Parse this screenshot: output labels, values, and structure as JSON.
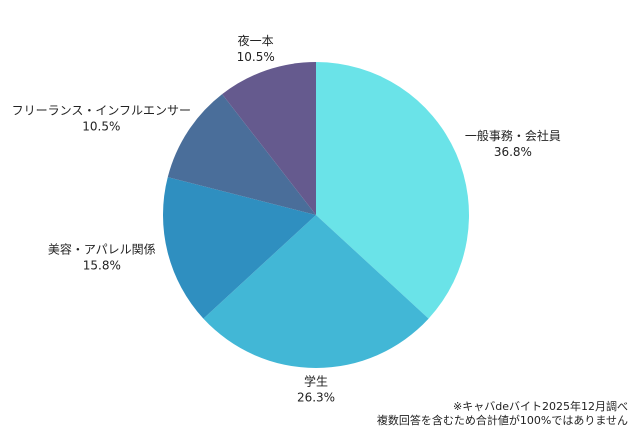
{
  "chart_data": {
    "type": "pie",
    "categories": [
      "一般事務・会社員",
      "学生",
      "美容・アパレル関係",
      "フリーランス・インフルエンサー",
      "夜一本"
    ],
    "values": [
      36.8,
      26.3,
      15.8,
      10.5,
      10.5
    ],
    "value_labels": [
      "36.8%",
      "26.3%",
      "15.8%",
      "10.5%",
      "10.5%"
    ],
    "colors": [
      "#6ae3e8",
      "#42b7d6",
      "#2f8fc0",
      "#4a6e9a",
      "#655a8e"
    ],
    "notes": [
      "※キャバdeバイト2025年12月調べ",
      "複数回答を含むため合計値が100%ではありません"
    ]
  }
}
